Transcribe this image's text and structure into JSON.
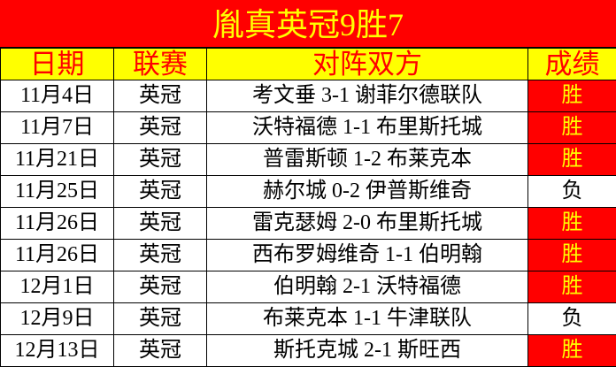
{
  "title": "胤真英冠9胜7",
  "headers": [
    "日期",
    "联赛",
    "对阵双方",
    "成绩"
  ],
  "colors": {
    "title_bg": "#ff0000",
    "title_text": "#ffff00",
    "header_bg": "#ffff00",
    "header_text": "#ff0000",
    "win_bg": "#ff0000",
    "win_text": "#ffff00"
  },
  "rows": [
    {
      "date": "11月4日",
      "league": "英冠",
      "match": "考文垂 3-1 谢菲尔德联队",
      "result": "胜"
    },
    {
      "date": "11月7日",
      "league": "英冠",
      "match": "沃特福德 1-1 布里斯托城",
      "result": "胜"
    },
    {
      "date": "11月21日",
      "league": "英冠",
      "match": "普雷斯顿 1-2 布莱克本",
      "result": "胜"
    },
    {
      "date": "11月25日",
      "league": "英冠",
      "match": "赫尔城 0-2 伊普斯维奇",
      "result": "负"
    },
    {
      "date": "11月26日",
      "league": "英冠",
      "match": "雷克瑟姆 2-0 布里斯托城",
      "result": "胜"
    },
    {
      "date": "11月26日",
      "league": "英冠",
      "match": "西布罗姆维奇 1-1 伯明翰",
      "result": "胜"
    },
    {
      "date": "12月1日",
      "league": "英冠",
      "match": "伯明翰 2-1 沃特福德",
      "result": "胜"
    },
    {
      "date": "12月9日",
      "league": "英冠",
      "match": "布莱克本 1-1 牛津联队",
      "result": "负"
    },
    {
      "date": "12月13日",
      "league": "英冠",
      "match": "斯托克城 2-1 斯旺西",
      "result": "胜"
    }
  ]
}
